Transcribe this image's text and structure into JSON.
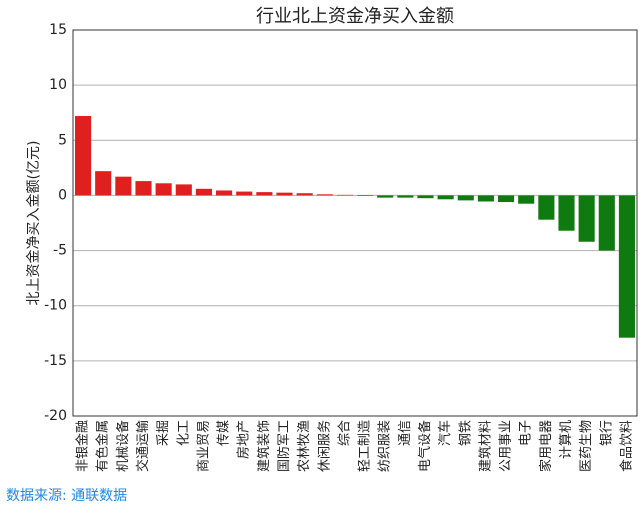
{
  "chart_data": {
    "type": "bar",
    "title": "行业北上资金净买入金额",
    "y_label": "北上资金净买入金额(亿元)",
    "source": "数据来源: 通联数据",
    "categories": [
      "非银金融",
      "有色金属",
      "机械设备",
      "交通运输",
      "采掘",
      "化工",
      "商业贸易",
      "传媒",
      "房地产",
      "建筑装饰",
      "国防军工",
      "农林牧渔",
      "休闲服务",
      "综合",
      "轻工制造",
      "纺织服装",
      "通信",
      "电气设备",
      "汽车",
      "钢铁",
      "建筑材料",
      "公用事业",
      "电子",
      "家用电器",
      "计算机",
      "医药生物",
      "银行",
      "食品饮料"
    ],
    "values": [
      7.2,
      2.2,
      1.7,
      1.3,
      1.1,
      1.0,
      0.6,
      0.45,
      0.35,
      0.3,
      0.25,
      0.2,
      0.1,
      0.05,
      -0.05,
      -0.2,
      -0.2,
      -0.25,
      -0.35,
      -0.45,
      -0.55,
      -0.6,
      -0.75,
      -2.2,
      -3.2,
      -4.2,
      -5.0,
      -12.9
    ],
    "positive_color": "#e0201f",
    "negative_color": "#0f7a0f",
    "ylim": [
      -20,
      15
    ],
    "yticks": [
      -20,
      -15,
      -10,
      -5,
      0,
      5,
      10,
      15
    ],
    "grid": true
  }
}
